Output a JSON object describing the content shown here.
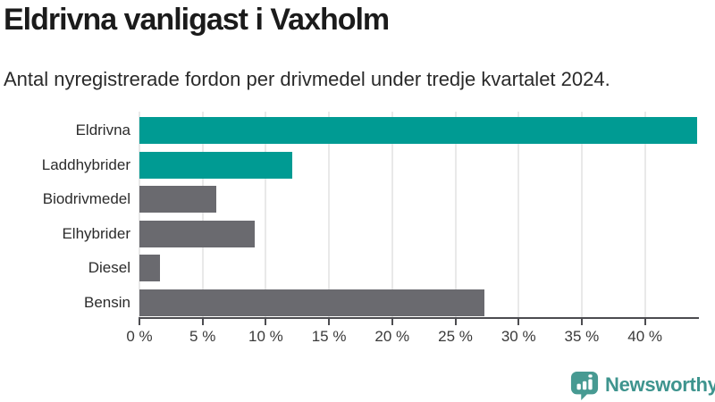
{
  "header": {
    "title": "Eldrivna vanligast i Vaxholm",
    "subtitle": "Antal nyregistrerade fordon per drivmedel under tredje kvartalet 2024."
  },
  "colors": {
    "highlight_bar": "#009b93",
    "default_bar": "#6a6a6f",
    "axis": "#4c4c50",
    "gridline": "#e9e9e9",
    "brand_teal": "#3e948e",
    "title_text": "#1b1b1b"
  },
  "chart_data": {
    "type": "bar",
    "orientation": "horizontal",
    "title": "Eldrivna vanligast i Vaxholm",
    "subtitle": "Antal nyregistrerade fordon per drivmedel under tredje kvartalet 2024.",
    "categories": [
      "Eldrivna",
      "Laddhybrider",
      "Biodrivmedel",
      "Elhybrider",
      "Diesel",
      "Bensin"
    ],
    "values": [
      44.1,
      12.1,
      6.1,
      9.1,
      1.6,
      27.3
    ],
    "unit": "%",
    "bar_colors": [
      "#009b93",
      "#009b93",
      "#6a6a6f",
      "#6a6a6f",
      "#6a6a6f",
      "#6a6a6f"
    ],
    "x_tick_values": [
      0,
      5,
      10,
      15,
      20,
      25,
      30,
      35,
      40
    ],
    "x_tick_labels": [
      "0 %",
      "5 %",
      "10 %",
      "15 %",
      "20 %",
      "25 %",
      "30 %",
      "35 %",
      "40 %"
    ],
    "xlim": [
      0,
      44.2
    ],
    "grid": true,
    "legend": "none",
    "xlabel": "",
    "ylabel": ""
  },
  "footer": {
    "brand_name": "Newsworthy",
    "logo_icon": "bar-chart-speech-bubble-icon"
  }
}
